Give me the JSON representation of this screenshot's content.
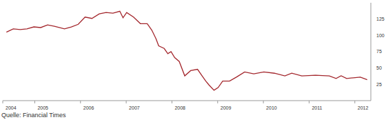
{
  "chart_data": {
    "type": "line",
    "source": "Quelle: Financial Times",
    "color": "#a3262c",
    "grid": false,
    "xlim": [
      2004.3,
      2012.35
    ],
    "xticks": [
      {
        "value": 2004.3,
        "label": "2004"
      },
      2005,
      2006,
      2007,
      2008,
      2009,
      2010,
      2011,
      2012
    ],
    "ylim": [
      0,
      150
    ],
    "yticks": [
      25,
      50,
      75,
      100,
      125
    ],
    "x": [
      2004.38,
      2004.53,
      2004.68,
      2004.83,
      2004.98,
      2005.13,
      2005.28,
      2005.43,
      2005.65,
      2005.8,
      2005.95,
      2006.1,
      2006.25,
      2006.41,
      2006.56,
      2006.71,
      2006.86,
      2006.93,
      2007.01,
      2007.16,
      2007.31,
      2007.46,
      2007.56,
      2007.65,
      2007.71,
      2007.83,
      2007.91,
      2007.98,
      2008.06,
      2008.16,
      2008.28,
      2008.41,
      2008.56,
      2008.66,
      2008.74,
      2008.81,
      2008.92,
      2009.01,
      2009.11,
      2009.26,
      2009.41,
      2009.59,
      2009.79,
      2010.01,
      2010.24,
      2010.47,
      2010.62,
      2010.84,
      2011.14,
      2011.44,
      2011.59,
      2011.7,
      2011.82,
      2011.97,
      2012.12,
      2012.27
    ],
    "values": [
      105,
      110,
      109,
      110,
      113,
      112,
      116,
      114,
      110,
      113,
      117,
      128,
      126,
      133,
      135,
      134,
      137,
      127,
      135,
      128,
      118,
      118,
      108,
      95,
      84,
      80,
      72,
      75,
      66,
      60,
      38,
      46,
      48,
      38,
      30,
      24,
      16,
      20,
      30,
      30,
      36,
      44,
      41,
      44,
      42,
      38,
      42,
      38,
      39,
      38,
      34,
      38,
      34,
      35,
      36,
      32
    ]
  }
}
